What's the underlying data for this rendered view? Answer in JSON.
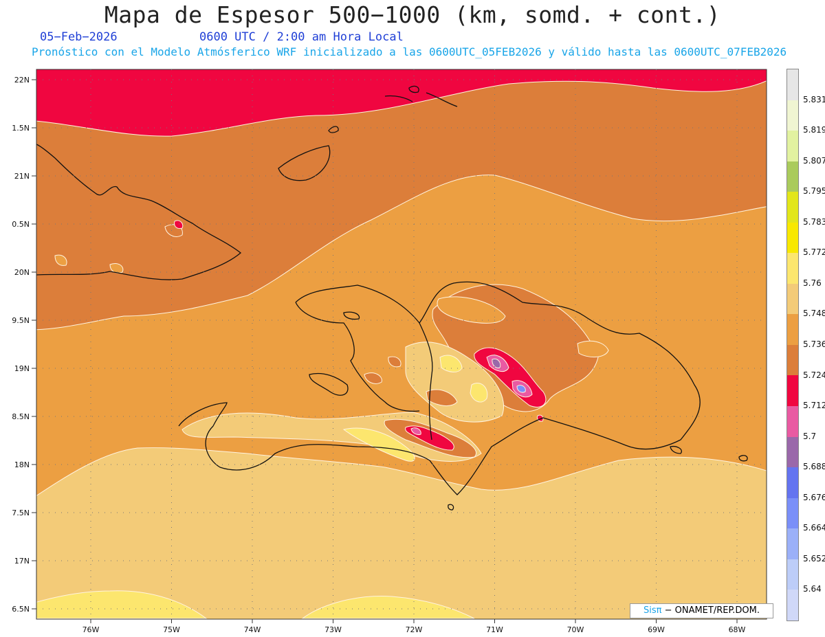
{
  "header": {
    "title": "Mapa de Espesor 500−1000 (km, somd. + cont.)",
    "date": "05−Feb−2026",
    "time": "0600 UTC / 2:00 am Hora Local",
    "forecast": "Pronóstico con el Modelo Atmósferico WRF inicializado a las 0600UTC_05FEB2026 y válido hasta las  0600UTC_07FEB2026"
  },
  "axes": {
    "lat_labels": [
      "22N",
      "1.5N",
      "21N",
      "0.5N",
      "20N",
      "9.5N",
      "19N",
      "8.5N",
      "18N",
      "7.5N",
      "17N",
      "6.5N"
    ],
    "lon_labels": [
      "76W",
      "75W",
      "74W",
      "73W",
      "72W",
      "71W",
      "70W",
      "69W",
      "68W"
    ]
  },
  "colorbar": {
    "labels": [
      "5.831",
      "5.819",
      "5.807",
      "5.795",
      "5.783",
      "5.772",
      "5.76",
      "5.748",
      "5.736",
      "5.724",
      "5.712",
      "5.7",
      "5.688",
      "5.676",
      "5.664",
      "5.652",
      "5.64"
    ],
    "colors": [
      "#e6e6e6",
      "#f0f5d2",
      "#e2f2a0",
      "#aacb5c",
      "#e2e61a",
      "#f8e800",
      "#fce66e",
      "#f3cb78",
      "#ec9f42",
      "#dc7e3a",
      "#f00640",
      "#e95aa2",
      "#9a68aa",
      "#6474f0",
      "#7a8ff8",
      "#9bb0f8",
      "#bdcdf8",
      "#d0d8f8"
    ]
  },
  "credit": {
    "brand": "Sisπ",
    "text": "− ONAMET/REP.DOM."
  },
  "colors": {
    "band_red": "#f00640",
    "band_dark_orange": "#dc7e3a",
    "band_orange": "#ec9f42",
    "band_tan": "#f3cb78",
    "band_yellow": "#fce66e",
    "subtitle_blue": "#1f3fd6",
    "forecast_cyan": "#19a5e8"
  }
}
